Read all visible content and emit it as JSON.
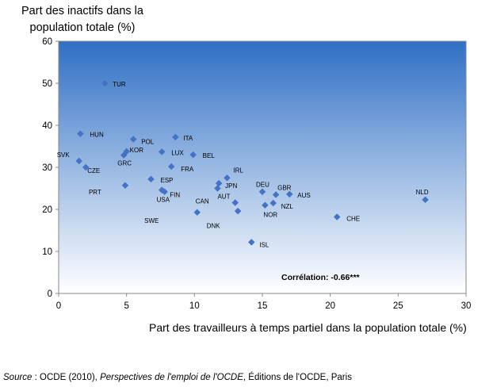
{
  "chart_data": {
    "type": "scatter",
    "title": "",
    "ylabel": "Part des inactifs dans la population totale (%)",
    "xlabel": "Part des travailleurs à temps partiel dans la population  totale (%)",
    "xlim": [
      0,
      30
    ],
    "ylim": [
      0,
      60
    ],
    "xticks": [
      0,
      5,
      10,
      15,
      20,
      25,
      30
    ],
    "yticks": [
      0,
      10,
      20,
      30,
      40,
      50,
      60
    ],
    "grid": false,
    "marker_color": "#4472C4",
    "annotation": "Corrélation: -0.66***",
    "points": [
      {
        "label": "TUR",
        "x": 3.4,
        "y": 50.0
      },
      {
        "label": "HUN",
        "x": 1.6,
        "y": 38.0
      },
      {
        "label": "POL",
        "x": 5.5,
        "y": 36.7
      },
      {
        "label": "ITA",
        "x": 8.6,
        "y": 37.2
      },
      {
        "label": "KOR",
        "x": 5.0,
        "y": 33.8
      },
      {
        "label": "GRC",
        "x": 4.8,
        "y": 32.9
      },
      {
        "label": "LUX",
        "x": 7.6,
        "y": 33.7
      },
      {
        "label": "BEL",
        "x": 9.9,
        "y": 33.0
      },
      {
        "label": "SVK",
        "x": 1.5,
        "y": 31.5
      },
      {
        "label": "CZE",
        "x": 2.0,
        "y": 30.0
      },
      {
        "label": "FRA",
        "x": 8.3,
        "y": 30.2
      },
      {
        "label": "ESP",
        "x": 6.8,
        "y": 27.2
      },
      {
        "label": "IRL",
        "x": 12.4,
        "y": 27.5
      },
      {
        "label": "JPN",
        "x": 11.8,
        "y": 26.2
      },
      {
        "label": "AUT",
        "x": 11.7,
        "y": 25.0
      },
      {
        "label": "PRT",
        "x": 4.9,
        "y": 25.7
      },
      {
        "label": "FIN",
        "x": 7.6,
        "y": 24.6
      },
      {
        "label": "USA",
        "x": 7.8,
        "y": 24.2
      },
      {
        "label": "DEU",
        "x": 15.0,
        "y": 24.2
      },
      {
        "label": "GBR",
        "x": 16.0,
        "y": 23.5
      },
      {
        "label": "AUS",
        "x": 17.0,
        "y": 23.6
      },
      {
        "label": "NLD",
        "x": 27.0,
        "y": 22.3
      },
      {
        "label": "NZL",
        "x": 15.8,
        "y": 21.5
      },
      {
        "label": "CAN",
        "x": 13.0,
        "y": 21.6
      },
      {
        "label": "NOR",
        "x": 15.2,
        "y": 21.0
      },
      {
        "label": "SWE",
        "x": 13.2,
        "y": 19.6
      },
      {
        "label": "CHE",
        "x": 20.5,
        "y": 18.2
      },
      {
        "label": "DNK",
        "x": 10.2,
        "y": 19.3
      },
      {
        "label": "ISL",
        "x": 14.2,
        "y": 12.2
      }
    ]
  },
  "source": {
    "prefix": "Source",
    "text_before": " : OCDE (2010), ",
    "title": "Perspectives  de l'emploi de l'OCDE",
    "text_after": ", Éditions de l'OCDE, Paris"
  }
}
